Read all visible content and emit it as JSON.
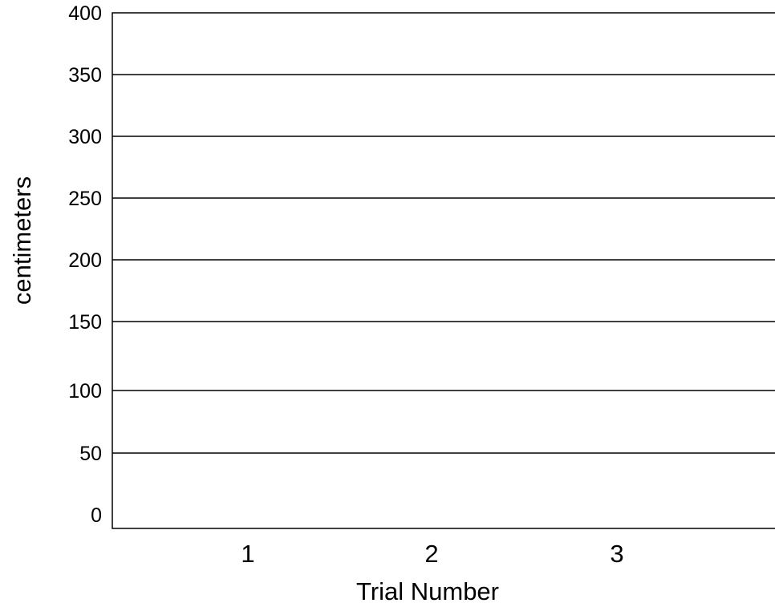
{
  "chart_data": {
    "type": "bar",
    "title": "",
    "xlabel": "Trial Number",
    "ylabel": "centimeters",
    "categories": [
      "1",
      "2",
      "3"
    ],
    "series": [],
    "ylim": [
      0,
      400
    ],
    "yticks": [
      0,
      50,
      100,
      150,
      200,
      250,
      300,
      350,
      400
    ],
    "ytick_labels": [
      "0",
      "50",
      "100",
      "150",
      "200",
      "250",
      "300",
      "350",
      "400"
    ],
    "grid": true,
    "legend": "none",
    "colors": {
      "background": "#ffffff",
      "lines": "#000000",
      "text": "#000000"
    }
  }
}
